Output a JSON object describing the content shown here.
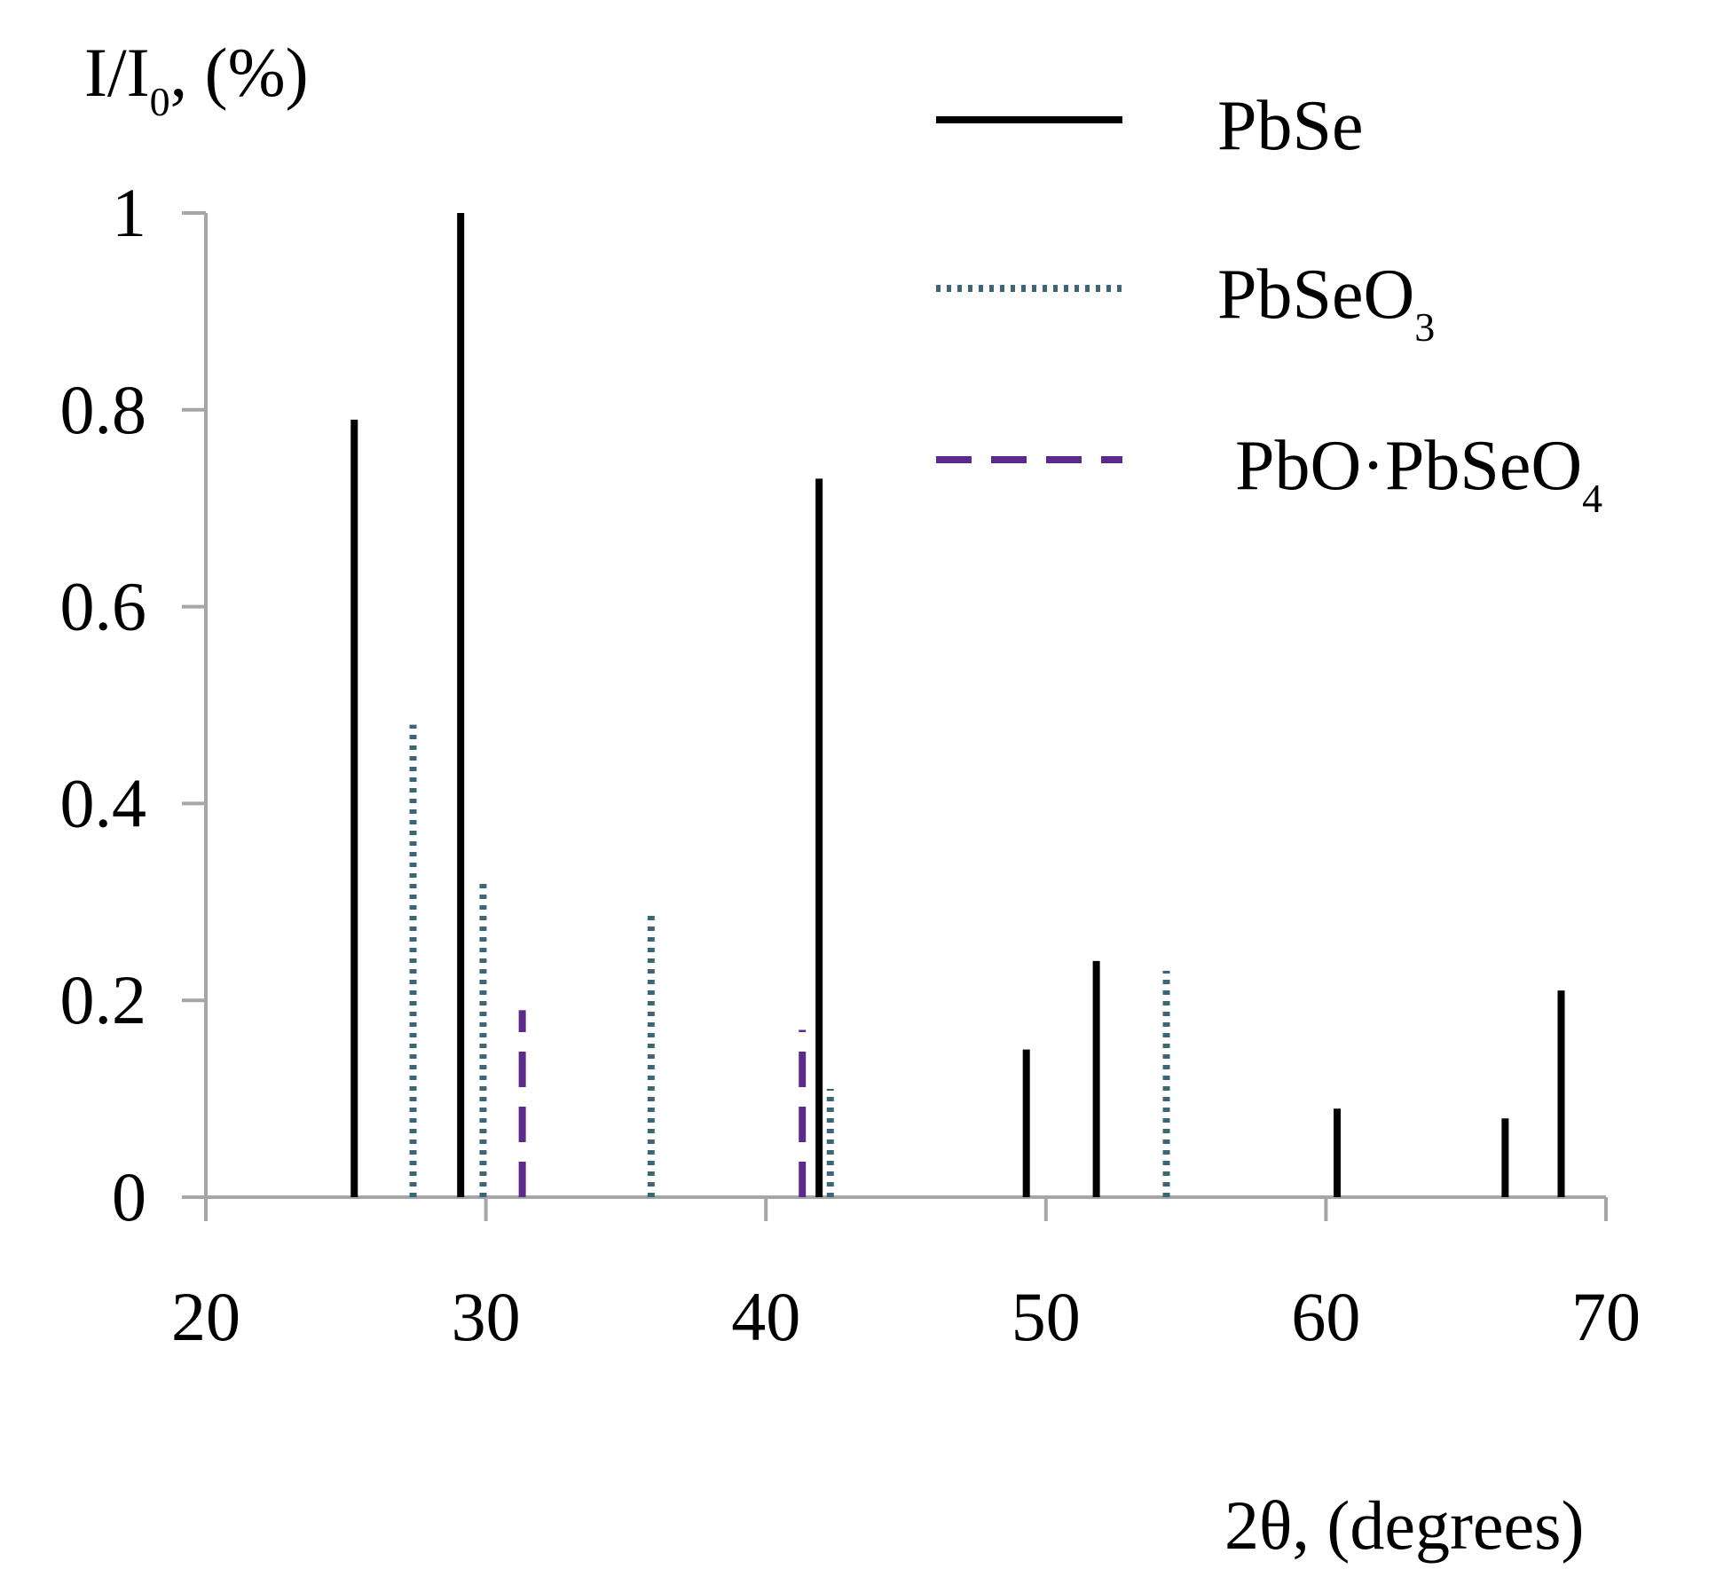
{
  "chart_data": {
    "type": "bar",
    "title": "",
    "ylabel": {
      "main": "I/I",
      "sub": "0",
      "tail": ", (%)"
    },
    "xlabel": "2θ, (degrees)",
    "xlim": [
      20,
      70
    ],
    "ylim": [
      0,
      1
    ],
    "xticks": [
      "20",
      "30",
      "40",
      "50",
      "60",
      "70"
    ],
    "yticks": [
      "0",
      "0.2",
      "0.4",
      "0.6",
      "0.8",
      "1"
    ],
    "grid": false,
    "legend_position": "top-right",
    "series": [
      {
        "name": "PbSe",
        "label_main": "PbSe",
        "label_sub": "",
        "style": "solid",
        "color": "#000000",
        "x": [
          25.3,
          29.1,
          41.9,
          49.3,
          51.8,
          60.4,
          66.4,
          68.4
        ],
        "values": [
          0.79,
          1.0,
          0.73,
          0.15,
          0.24,
          0.09,
          0.08,
          0.21
        ]
      },
      {
        "name": "PbSeO3",
        "label_main": "PbSeO",
        "label_sub": "3",
        "style": "dotted",
        "color": "#3a6678",
        "x": [
          27.4,
          29.9,
          35.9,
          42.3,
          54.3
        ],
        "values": [
          0.48,
          0.32,
          0.29,
          0.11,
          0.23
        ]
      },
      {
        "name": "PbO·PbSeO4",
        "label_main": "PbO·PbSeO",
        "label_sub": "4",
        "style": "dashed",
        "color": "#5b2a8c",
        "x": [
          31.3,
          41.3
        ],
        "values": [
          0.19,
          0.17
        ]
      }
    ]
  }
}
